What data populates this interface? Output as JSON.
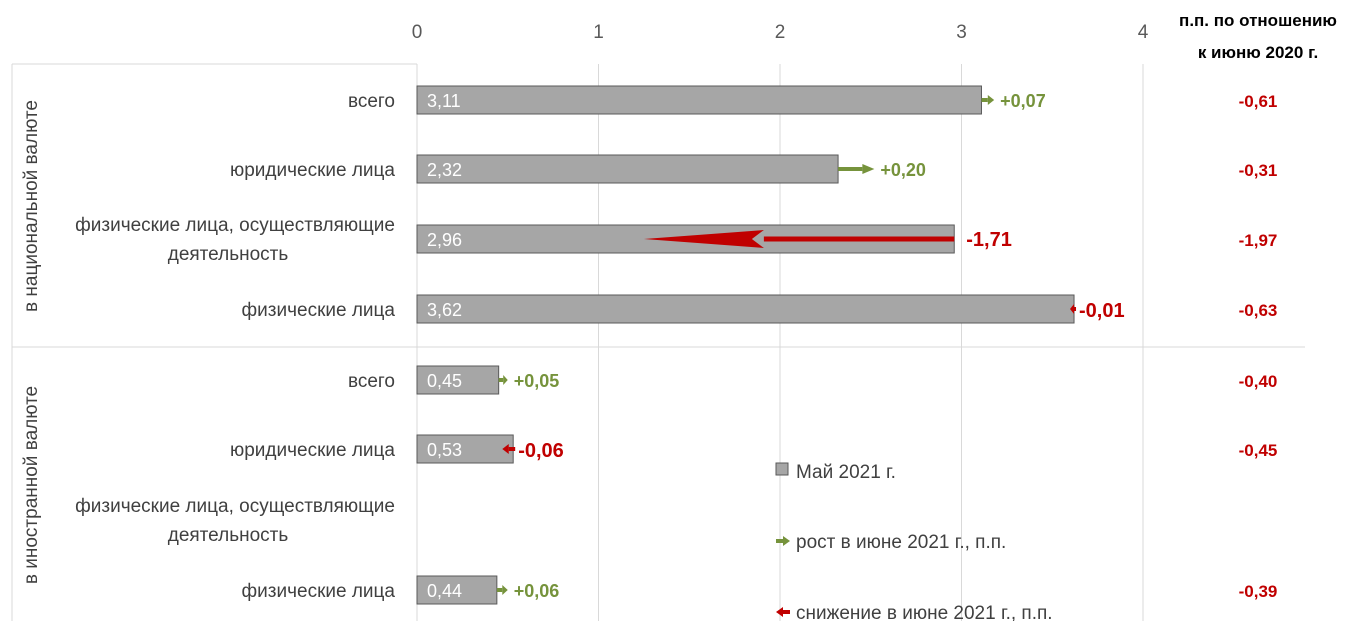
{
  "chart_data": {
    "type": "bar",
    "orientation": "horizontal",
    "x_ticks": [
      "0",
      "1",
      "2",
      "3",
      "4"
    ],
    "xlim": [
      0,
      4
    ],
    "grid": true,
    "yoy_header": [
      "п.п. по отношению",
      "к  июню 2020 г."
    ],
    "groups": [
      {
        "label": "в национальной валюте",
        "rows": [
          {
            "category": "всего",
            "value": 3.11,
            "value_label": "3,11",
            "change": 0.07,
            "change_label": "+0,07",
            "yoy_label": "-0,61"
          },
          {
            "category": "юридические лица",
            "value": 2.32,
            "value_label": "2,32",
            "change": 0.2,
            "change_label": "+0,20",
            "yoy_label": "-0,31"
          },
          {
            "category": [
              "физические лица, осуществляющие",
              "деятельность"
            ],
            "value": 2.96,
            "value_label": "2,96",
            "change": -1.71,
            "change_label": "-1,71",
            "yoy_label": "-1,97"
          },
          {
            "category": "физические лица",
            "value": 3.62,
            "value_label": "3,62",
            "change": -0.01,
            "change_label": "-0,01",
            "yoy_label": "-0,63"
          }
        ]
      },
      {
        "label": "в иностранной валюте",
        "rows": [
          {
            "category": "всего",
            "value": 0.45,
            "value_label": "0,45",
            "change": 0.05,
            "change_label": "+0,05",
            "yoy_label": "-0,40"
          },
          {
            "category": "юридические лица",
            "value": 0.53,
            "value_label": "0,53",
            "change": -0.06,
            "change_label": "-0,06",
            "yoy_label": "-0,45"
          },
          {
            "category": [
              "физические лица, осуществляющие",
              "деятельность"
            ],
            "value": null,
            "value_label": "",
            "change": null,
            "change_label": "",
            "yoy_label": ""
          },
          {
            "category": "физические лица",
            "value": 0.44,
            "value_label": "0,44",
            "change": 0.06,
            "change_label": "+0,06",
            "yoy_label": "-0,39"
          }
        ]
      }
    ],
    "legend": {
      "bar": "Май 2021 г.",
      "increase": "рост в июне 2021 г., п.п.",
      "decrease": "снижение в июне 2021 г., п.п."
    },
    "colors": {
      "bar": "#a6a6a6",
      "bar_border": "#595959",
      "increase": "#76933c",
      "decrease": "#c00000",
      "grid": "#d9d9d9"
    }
  }
}
